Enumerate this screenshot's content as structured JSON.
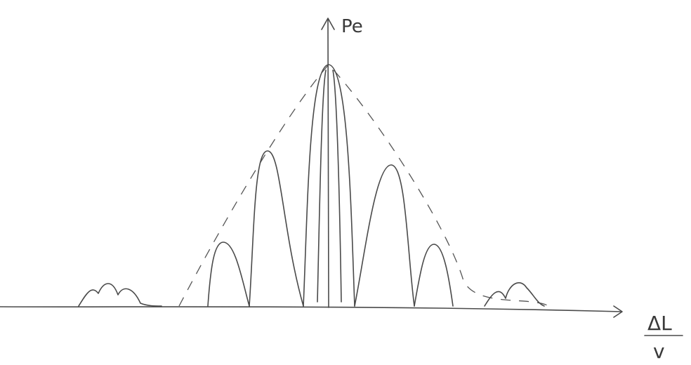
{
  "labels": {
    "y_axis": "Pe",
    "x_axis_numerator": "ΔL",
    "x_axis_denominator": "v"
  }
}
